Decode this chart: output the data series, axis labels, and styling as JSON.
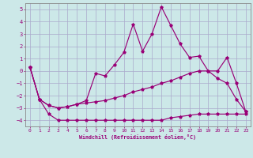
{
  "xlabel": "Windchill (Refroidissement éolien,°C)",
  "background_color": "#cce8e8",
  "grid_color": "#aaaacc",
  "line_color": "#990077",
  "xlim": [
    -0.5,
    23.5
  ],
  "ylim": [
    -4.5,
    5.5
  ],
  "xticks": [
    0,
    1,
    2,
    3,
    4,
    5,
    6,
    7,
    8,
    9,
    10,
    11,
    12,
    13,
    14,
    15,
    16,
    17,
    18,
    19,
    20,
    21,
    22,
    23
  ],
  "yticks": [
    -4,
    -3,
    -2,
    -1,
    0,
    1,
    2,
    3,
    4,
    5
  ],
  "line1_x": [
    0,
    1,
    2,
    3,
    4,
    5,
    6,
    7,
    8,
    9,
    10,
    11,
    12,
    13,
    14,
    15,
    16,
    17,
    18,
    19,
    20,
    21,
    22,
    23
  ],
  "line1_y": [
    0.3,
    -2.3,
    -3.5,
    -4.0,
    -4.0,
    -4.0,
    -4.0,
    -4.0,
    -4.0,
    -4.0,
    -4.0,
    -4.0,
    -4.0,
    -4.0,
    -4.0,
    -3.8,
    -3.7,
    -3.6,
    -3.5,
    -3.5,
    -3.5,
    -3.5,
    -3.5,
    -3.5
  ],
  "line2_x": [
    0,
    1,
    2,
    3,
    4,
    5,
    6,
    7,
    8,
    9,
    10,
    11,
    12,
    13,
    14,
    15,
    16,
    17,
    18,
    19,
    20,
    21,
    22,
    23
  ],
  "line2_y": [
    0.3,
    -2.3,
    -2.8,
    -3.0,
    -2.9,
    -2.7,
    -2.6,
    -2.5,
    -2.4,
    -2.2,
    -2.0,
    -1.7,
    -1.5,
    -1.3,
    -1.0,
    -0.8,
    -0.5,
    -0.2,
    0.0,
    0.0,
    -0.6,
    -1.0,
    -2.3,
    -3.3
  ],
  "line3_x": [
    0,
    1,
    2,
    3,
    4,
    5,
    6,
    7,
    8,
    9,
    10,
    11,
    12,
    13,
    14,
    15,
    16,
    17,
    18,
    19,
    20,
    21,
    22,
    23
  ],
  "line3_y": [
    0.3,
    -2.3,
    -2.8,
    -3.0,
    -2.9,
    -2.7,
    -2.4,
    -0.2,
    -0.4,
    0.5,
    1.5,
    3.8,
    1.6,
    3.0,
    5.2,
    3.7,
    2.2,
    1.1,
    1.2,
    0.0,
    0.0,
    1.1,
    -1.0,
    -3.3
  ]
}
